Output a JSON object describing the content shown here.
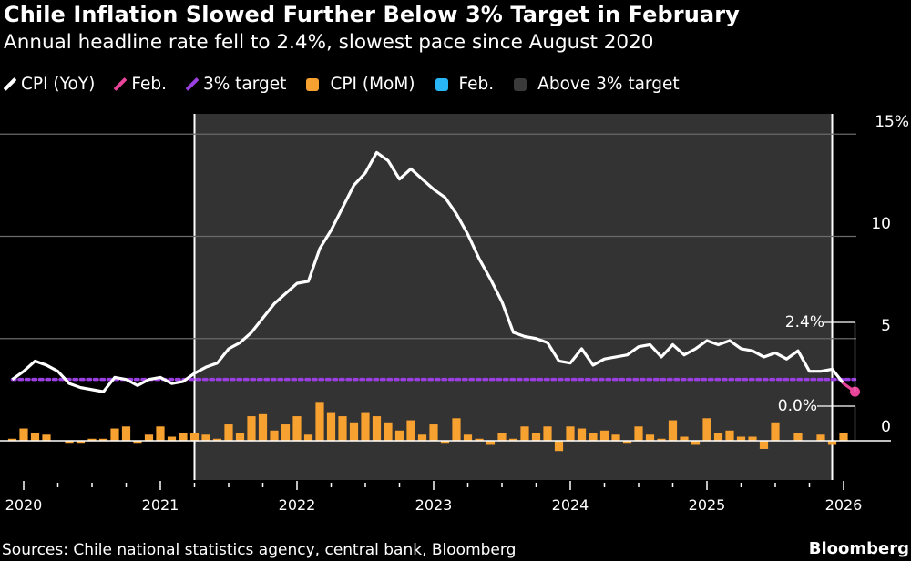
{
  "title": "Chile Inflation Slowed Further Below 3% Target in February",
  "subtitle": "Annual headline rate fell to 2.4%, slowest pace since August 2020",
  "legend": [
    {
      "label": "CPI (YoY)",
      "marker": "line",
      "color": "#ffffff"
    },
    {
      "label": "Feb.",
      "marker": "line",
      "color": "#e8449a"
    },
    {
      "label": "3% target",
      "marker": "line",
      "color": "#9b3fe0"
    },
    {
      "label": "CPI (MoM)",
      "marker": "square",
      "color": "#f7a130"
    },
    {
      "label": "Feb.",
      "marker": "square",
      "color": "#29b6f6"
    },
    {
      "label": "Above 3% target",
      "marker": "square",
      "color": "#3a3a3a"
    }
  ],
  "footer": {
    "sources": "Sources: Chile national statistics agency, central bank, Bloomberg",
    "brand": "Bloomberg"
  },
  "chart_data": {
    "type": "line",
    "x_tick_labels": [
      "2020",
      "2021",
      "2022",
      "2023",
      "2024",
      "2025",
      "2026"
    ],
    "y_tick_labels": [
      "0",
      "5",
      "10",
      "15%"
    ],
    "y_ticks": [
      0,
      5,
      10,
      15
    ],
    "ylim": [
      -2,
      15.5
    ],
    "grid": true,
    "legend_position": "top",
    "target": 3,
    "highlight": {
      "label": "Above 3% target",
      "from": "2021-04",
      "to": "2025-12",
      "color": "#333333"
    },
    "annotations": [
      {
        "text": "2.4%",
        "series": "CPI (YoY)",
        "date": "2026-02"
      },
      {
        "text": "0.0%",
        "series": "CPI (MoM)",
        "date": "2026-02"
      }
    ],
    "dates": [
      "2019-12",
      "2020-01",
      "2020-02",
      "2020-03",
      "2020-04",
      "2020-05",
      "2020-06",
      "2020-07",
      "2020-08",
      "2020-09",
      "2020-10",
      "2020-11",
      "2020-12",
      "2021-01",
      "2021-02",
      "2021-03",
      "2021-04",
      "2021-05",
      "2021-06",
      "2021-07",
      "2021-08",
      "2021-09",
      "2021-10",
      "2021-11",
      "2021-12",
      "2022-01",
      "2022-02",
      "2022-03",
      "2022-04",
      "2022-05",
      "2022-06",
      "2022-07",
      "2022-08",
      "2022-09",
      "2022-10",
      "2022-11",
      "2022-12",
      "2023-01",
      "2023-02",
      "2023-03",
      "2023-04",
      "2023-05",
      "2023-06",
      "2023-07",
      "2023-08",
      "2023-09",
      "2023-10",
      "2023-11",
      "2023-12",
      "2024-01",
      "2024-02",
      "2024-03",
      "2024-04",
      "2024-05",
      "2024-06",
      "2024-07",
      "2024-08",
      "2024-09",
      "2024-10",
      "2024-11",
      "2024-12",
      "2025-01",
      "2025-02",
      "2025-03",
      "2025-04",
      "2025-05",
      "2025-06",
      "2025-07",
      "2025-08",
      "2025-09",
      "2025-10",
      "2025-11",
      "2025-12",
      "2026-01",
      "2026-02"
    ],
    "series": [
      {
        "name": "CPI (YoY)",
        "type": "line",
        "color": "#ffffff",
        "values": [
          3.0,
          3.4,
          3.9,
          3.7,
          3.4,
          2.8,
          2.6,
          2.5,
          2.4,
          3.1,
          3.0,
          2.7,
          3.0,
          3.1,
          2.8,
          2.9,
          3.3,
          3.6,
          3.8,
          4.5,
          4.8,
          5.3,
          6.0,
          6.7,
          7.2,
          7.7,
          7.8,
          9.4,
          10.3,
          11.4,
          12.5,
          13.1,
          14.1,
          13.7,
          12.8,
          13.3,
          12.8,
          12.3,
          11.9,
          11.1,
          10.1,
          8.9,
          7.9,
          6.8,
          5.3,
          5.1,
          5.0,
          4.8,
          3.9,
          3.8,
          4.5,
          3.7,
          4.0,
          4.1,
          4.2,
          4.6,
          4.7,
          4.1,
          4.7,
          4.2,
          4.5,
          4.9,
          4.7,
          4.9,
          4.5,
          4.4,
          4.1,
          4.3,
          4.0,
          4.4,
          3.4,
          3.4,
          3.5,
          2.8,
          2.4
        ]
      },
      {
        "name": "CPI (MoM)",
        "type": "bar",
        "color": "#f7a130",
        "values": [
          0.1,
          0.6,
          0.4,
          0.3,
          0.0,
          -0.1,
          -0.1,
          0.1,
          0.1,
          0.6,
          0.7,
          -0.1,
          0.3,
          0.7,
          0.2,
          0.4,
          0.4,
          0.3,
          0.1,
          0.8,
          0.4,
          1.2,
          1.3,
          0.5,
          0.8,
          1.2,
          0.3,
          1.9,
          1.4,
          1.2,
          0.9,
          1.4,
          1.2,
          0.9,
          0.5,
          1.0,
          0.3,
          0.8,
          -0.1,
          1.1,
          0.3,
          0.1,
          -0.2,
          0.4,
          0.1,
          0.7,
          0.4,
          0.7,
          -0.5,
          0.7,
          0.6,
          0.4,
          0.5,
          0.3,
          -0.1,
          0.7,
          0.3,
          0.1,
          1.0,
          0.2,
          -0.2,
          1.1,
          0.4,
          0.5,
          0.2,
          0.2,
          -0.4,
          0.9,
          0.0,
          0.4,
          0.0,
          0.3,
          -0.2,
          0.4,
          0.0
        ]
      }
    ]
  }
}
